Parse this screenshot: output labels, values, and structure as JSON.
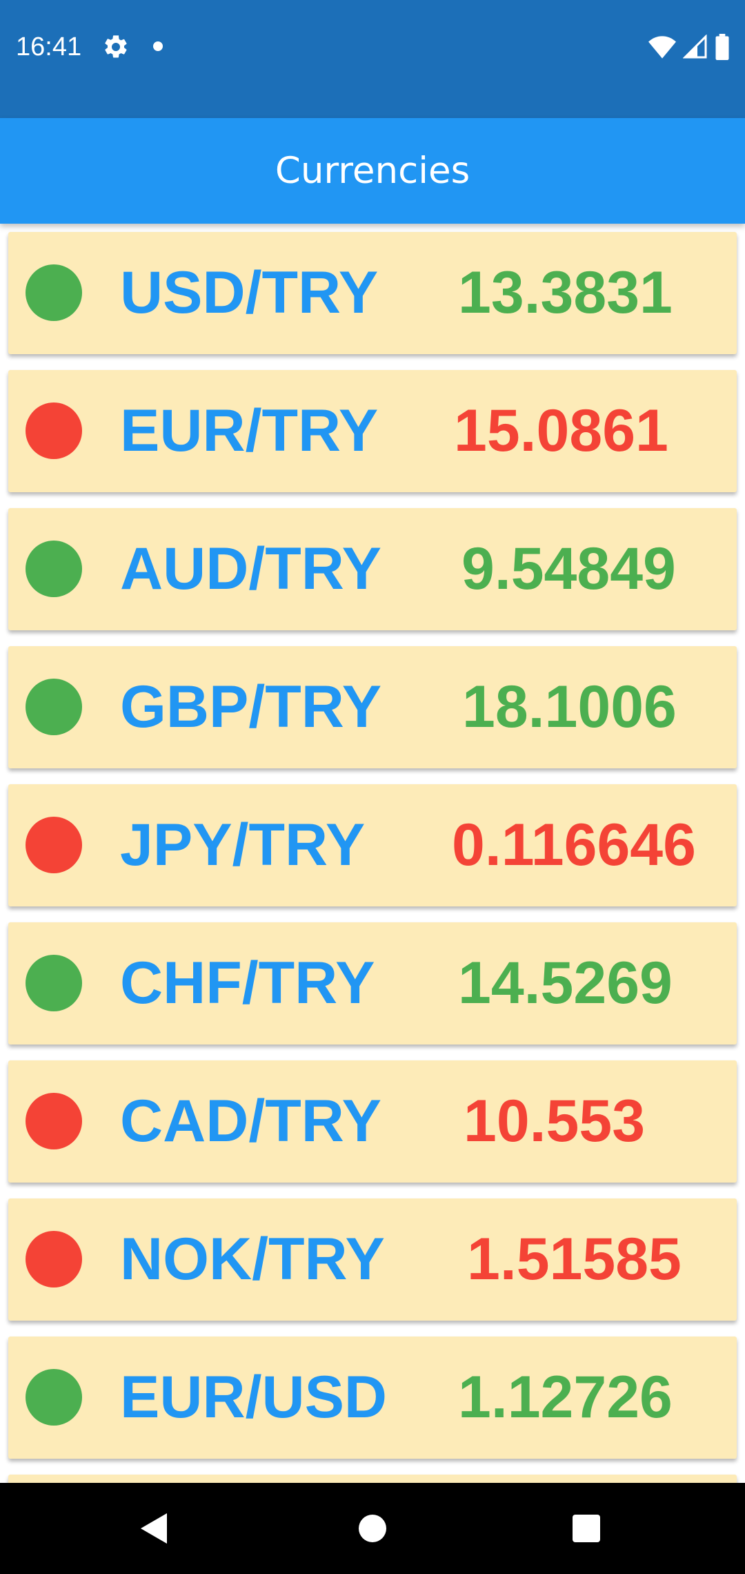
{
  "status_bar": {
    "time": "16:41",
    "icons": [
      "gear-icon",
      "notification-dot-icon",
      "wifi-icon",
      "signal-icon",
      "battery-icon"
    ]
  },
  "app_bar": {
    "title": "Currencies"
  },
  "colors": {
    "up": "#4caf50",
    "down": "#f44336",
    "pair_text": "#2196f3",
    "card_background": "#fdebb8",
    "app_bar": "#2196f3",
    "status_bar": "#1c6fb8"
  },
  "currencies": [
    {
      "pair": "USD/TRY",
      "rate": "13.3831",
      "trend": "up"
    },
    {
      "pair": "EUR/TRY",
      "rate": "15.0861",
      "trend": "down"
    },
    {
      "pair": "AUD/TRY",
      "rate": "9.54849",
      "trend": "up"
    },
    {
      "pair": "GBP/TRY",
      "rate": "18.1006",
      "trend": "up"
    },
    {
      "pair": "JPY/TRY",
      "rate": "0.116646",
      "trend": "down"
    },
    {
      "pair": "CHF/TRY",
      "rate": "14.5269",
      "trend": "up"
    },
    {
      "pair": "CAD/TRY",
      "rate": "10.553",
      "trend": "down"
    },
    {
      "pair": "NOK/TRY",
      "rate": "1.51585",
      "trend": "down"
    },
    {
      "pair": "EUR/USD",
      "rate": "1.12726",
      "trend": "up"
    }
  ],
  "nav_bar": {
    "icons": [
      "back-icon",
      "home-icon",
      "recents-icon"
    ]
  }
}
